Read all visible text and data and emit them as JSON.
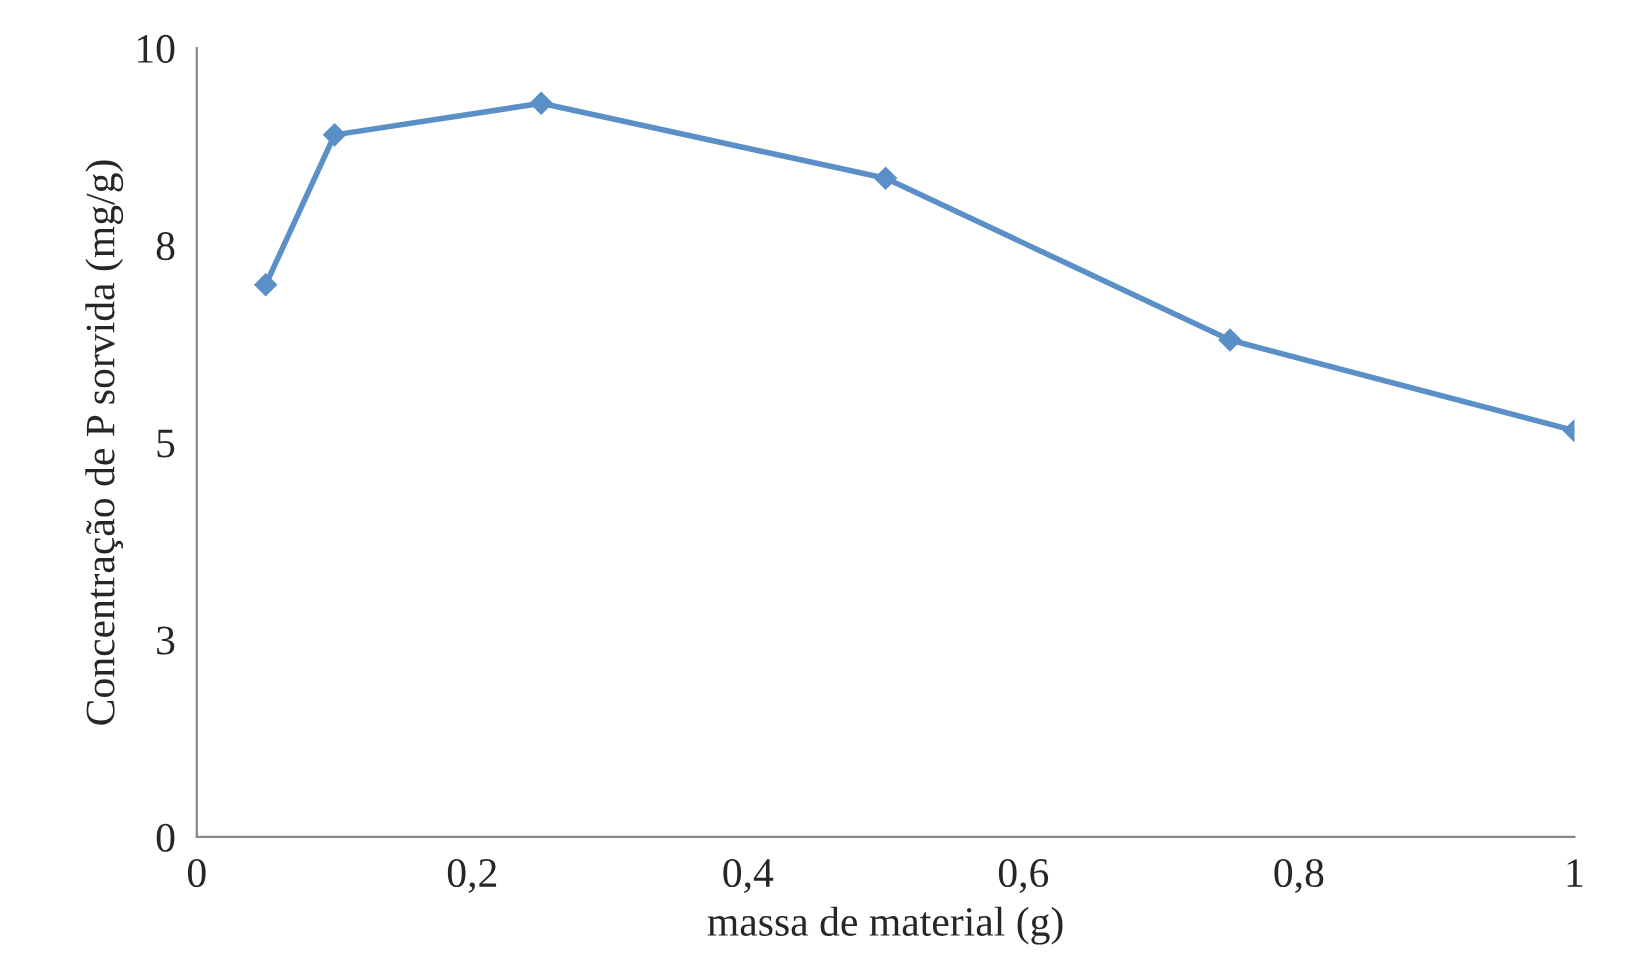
{
  "chart_data": {
    "type": "line",
    "xlabel": "massa de material (g)",
    "ylabel": "Concentração de P sorvida (mg/g)",
    "x": [
      0.05,
      0.1,
      0.25,
      0.5,
      0.75,
      1.0
    ],
    "series": [
      {
        "color": "#5b8fc7",
        "values": [
          7.0,
          8.9,
          9.3,
          8.35,
          6.3,
          5.15
        ]
      }
    ],
    "xlim": [
      0,
      1
    ],
    "xticks": [
      0,
      {
        "value": 0.2,
        "label": "0,2"
      },
      {
        "value": 0.4,
        "label": "0,4"
      },
      {
        "value": 0.6,
        "label": "0,6"
      },
      {
        "value": 0.8,
        "label": "0,8"
      },
      1
    ],
    "ylim": [
      0,
      10
    ],
    "yticks": [
      0,
      {
        "value": 2.5,
        "label": "3"
      },
      5,
      {
        "value": 7.5,
        "label": "8"
      },
      10
    ],
    "marker": "diamond",
    "line_style": "solid",
    "grid": false,
    "legend": false
  }
}
